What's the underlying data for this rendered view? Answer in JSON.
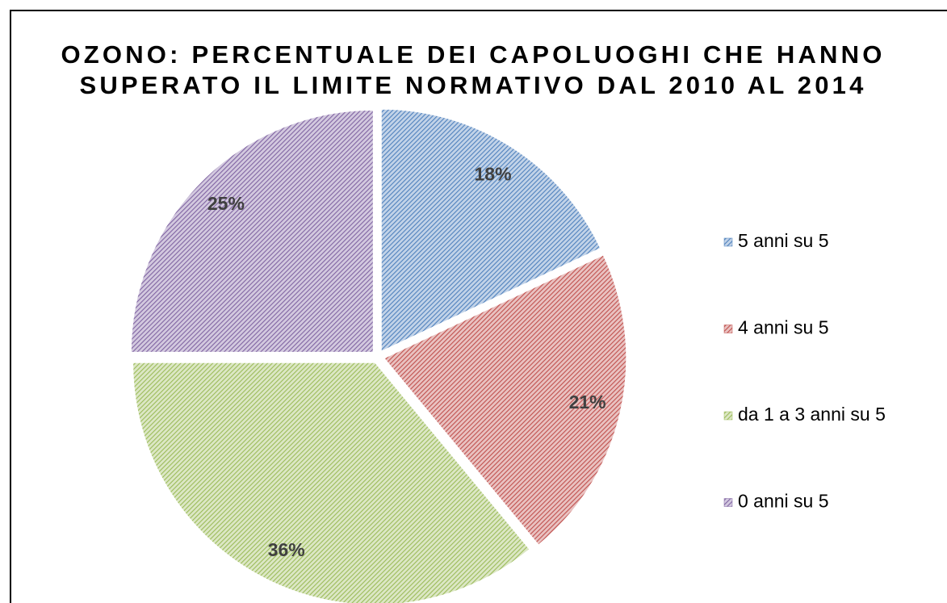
{
  "chart_data": {
    "type": "pie",
    "title": [
      "OZONO: PERCENTUALE DEI CAPOLUOGHI CHE HANNO",
      "SUPERATO IL LIMITE NORMATIVO DAL 2010 AL 2014"
    ],
    "categories": [
      "5 anni su 5",
      "4 anni su 5",
      "da 1 a 3 anni su 5",
      "0 anni su 5"
    ],
    "values": [
      18,
      21,
      36,
      25
    ],
    "value_labels": [
      "18%",
      "21%",
      "36%",
      "25%"
    ],
    "colors": [
      "#4f81bd",
      "#c0504d",
      "#9bbb59",
      "#8064a2"
    ],
    "legend": "right"
  }
}
